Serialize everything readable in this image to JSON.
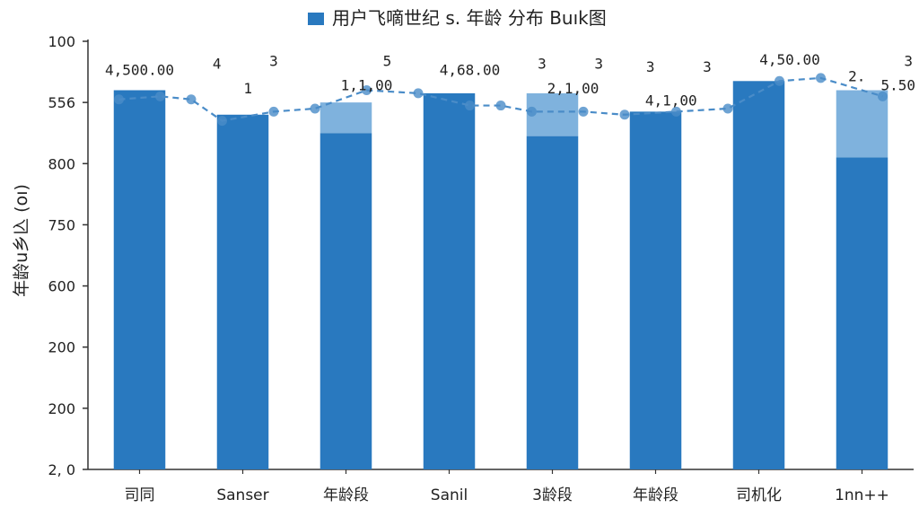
{
  "chart_data": {
    "type": "bar",
    "title": "用户飞嘀世纪 s. 年龄 分布 Buık图",
    "legend_entry": "用户飞嘀世纪 s. 年龄 分布 Buık图",
    "legend_position": "top-center",
    "ylabel": "年龄u乡兦 (oı)",
    "xlabel": "",
    "y_tick_labels": [
      "2, 0",
      "200",
      "200",
      "600",
      "750",
      "800",
      "556",
      "100"
    ],
    "categories": [
      "司同",
      "Sanser",
      "年龄段",
      "Sanil",
      "3龄段",
      "年龄段",
      "司机化",
      "1nn++"
    ],
    "ylim": [
      0,
      7
    ],
    "grid": false,
    "series": [
      {
        "values": [
          6.2,
          5.8,
          5.5,
          6.15,
          5.45,
          5.85,
          6.35,
          5.1
        ],
        "secondary_values": [
          0,
          0,
          0.5,
          0,
          0.7,
          0,
          0,
          1.1
        ]
      }
    ],
    "trend_line": [
      {
        "x": -0.2,
        "y": 6.05
      },
      {
        "x": 0.2,
        "y": 6.1
      },
      {
        "x": 0.5,
        "y": 6.05
      },
      {
        "x": 0.8,
        "y": 5.7
      },
      {
        "x": 1.3,
        "y": 5.85
      },
      {
        "x": 1.7,
        "y": 5.9
      },
      {
        "x": 2.2,
        "y": 6.2
      },
      {
        "x": 2.7,
        "y": 6.15
      },
      {
        "x": 3.2,
        "y": 5.95
      },
      {
        "x": 3.5,
        "y": 5.95
      },
      {
        "x": 3.8,
        "y": 5.85
      },
      {
        "x": 4.3,
        "y": 5.85
      },
      {
        "x": 4.7,
        "y": 5.8
      },
      {
        "x": 5.2,
        "y": 5.85
      },
      {
        "x": 5.7,
        "y": 5.9
      },
      {
        "x": 6.2,
        "y": 6.35
      },
      {
        "x": 6.6,
        "y": 6.4
      },
      {
        "x": 7.2,
        "y": 6.1
      }
    ],
    "data_labels": [
      {
        "text": "4,500.00",
        "x": 0,
        "y": 6.45
      },
      {
        "text": "4",
        "x": 0.75,
        "y": 6.55
      },
      {
        "text": "3",
        "x": 1.3,
        "y": 6.6
      },
      {
        "text": "1",
        "x": 1.05,
        "y": 6.15
      },
      {
        "text": "1,1,00",
        "x": 2.2,
        "y": 6.2
      },
      {
        "text": "5",
        "x": 2.4,
        "y": 6.6
      },
      {
        "text": "4,68.00",
        "x": 3.2,
        "y": 6.45
      },
      {
        "text": "3",
        "x": 3.9,
        "y": 6.55
      },
      {
        "text": "3",
        "x": 4.45,
        "y": 6.55
      },
      {
        "text": "2,1,00",
        "x": 4.2,
        "y": 6.15
      },
      {
        "text": "3",
        "x": 4.95,
        "y": 6.5
      },
      {
        "text": "3",
        "x": 5.5,
        "y": 6.5
      },
      {
        "text": "4,1,00",
        "x": 5.15,
        "y": 5.95
      },
      {
        "text": "4,50.00",
        "x": 6.3,
        "y": 6.62
      },
      {
        "text": "3",
        "x": 7.45,
        "y": 6.6
      },
      {
        "text": "2.",
        "x": 6.95,
        "y": 6.35
      },
      {
        "text": "5.50",
        "x": 7.35,
        "y": 6.2
      }
    ],
    "colors": {
      "bar": "#2979bf",
      "bar_secondary": "#7fb2dd",
      "trend": "#4a8cc8",
      "axis": "#333333",
      "text": "#222222"
    }
  }
}
